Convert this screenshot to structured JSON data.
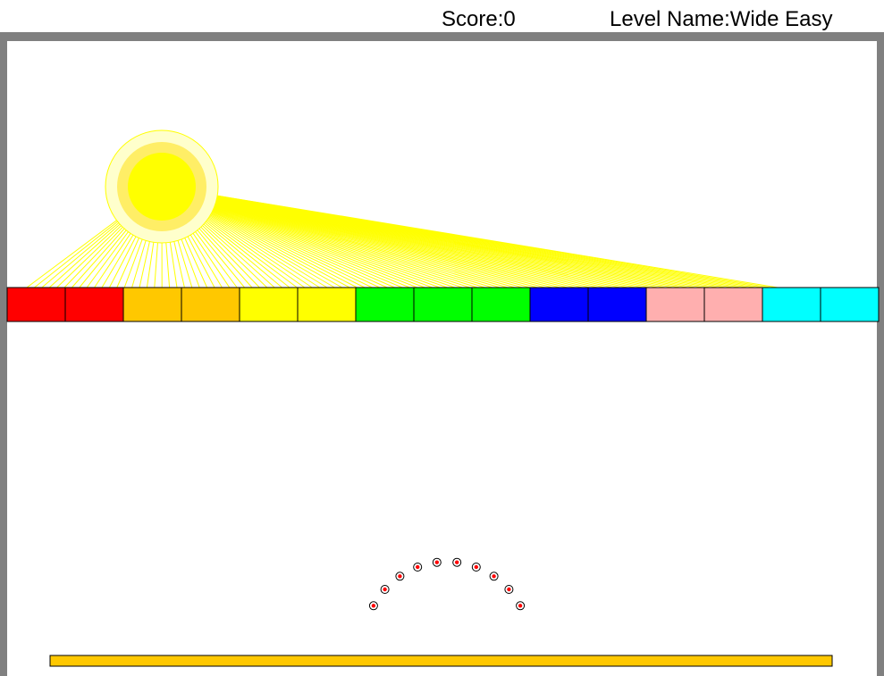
{
  "hud": {
    "score_label": "Score:",
    "score_value": "0",
    "level_label": "Level Name:",
    "level_value": "Wide Easy"
  },
  "colors": {
    "wall": "#808080",
    "background": "#ffffff",
    "sun_core": "#ffff00",
    "sun_halo_inner": "#ffee66",
    "sun_halo_outer": "#ffffcc",
    "sun_rays": "#ffff00",
    "paddle": "#ffc800",
    "ball_fill": "#ff0000",
    "ball_outline": "#000000"
  },
  "level": {
    "blocks": [
      {
        "color": "#ff0000"
      },
      {
        "color": "#ff0000"
      },
      {
        "color": "#ffc800"
      },
      {
        "color": "#ffc800"
      },
      {
        "color": "#ffff00"
      },
      {
        "color": "#ffff00"
      },
      {
        "color": "#00ff00"
      },
      {
        "color": "#00ff00"
      },
      {
        "color": "#00ff00"
      },
      {
        "color": "#0000ff"
      },
      {
        "color": "#0000ff"
      },
      {
        "color": "#ffafaf"
      },
      {
        "color": "#ffafaf"
      },
      {
        "color": "#00ffff"
      },
      {
        "color": "#00ffff"
      }
    ],
    "ball_count": 10
  }
}
